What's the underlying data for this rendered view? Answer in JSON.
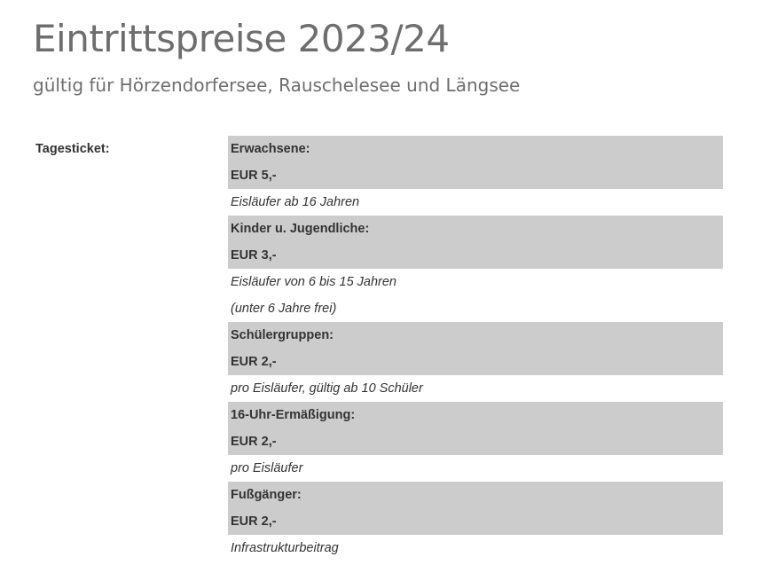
{
  "header": {
    "title": "Eintrittspreise 2023/24",
    "subtitle": "gültig für Hörzendorfersee, Rauschelesee und Längsee"
  },
  "colors": {
    "heading": "#6e6e6e",
    "text": "#333333",
    "highlight_background": "#cccccc"
  },
  "tagesticket": {
    "label": "Tagesticket:",
    "categories": [
      {
        "name": "Erwachsene:",
        "price": "EUR 5,-",
        "notes": [
          "Eisläufer ab 16 Jahren"
        ]
      },
      {
        "name": "Kinder u. Jugendliche:",
        "price": "EUR 3,-",
        "notes": [
          "Eisläufer von 6 bis 15 Jahren",
          "(unter 6 Jahre frei)"
        ]
      },
      {
        "name": "Schülergruppen:",
        "price": "EUR 2,-",
        "notes": [
          "pro Eisläufer, gültig ab 10 Schüler"
        ]
      },
      {
        "name": "16-Uhr-Ermäßigung:",
        "price": "EUR 2,-",
        "notes": [
          "pro Eisläufer"
        ]
      },
      {
        "name": "Fußgänger:",
        "price": "EUR 2,-",
        "notes": [
          "Infrastrukturbeitrag"
        ]
      }
    ]
  }
}
